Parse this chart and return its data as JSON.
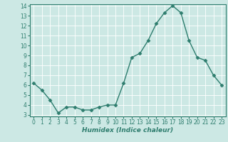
{
  "x": [
    0,
    1,
    2,
    3,
    4,
    5,
    6,
    7,
    8,
    9,
    10,
    11,
    12,
    13,
    14,
    15,
    16,
    17,
    18,
    19,
    20,
    21,
    22,
    23
  ],
  "y": [
    6.2,
    5.5,
    4.5,
    3.2,
    3.8,
    3.8,
    3.5,
    3.5,
    3.8,
    4.0,
    4.0,
    6.2,
    8.8,
    9.2,
    10.5,
    12.2,
    13.3,
    14.0,
    13.3,
    10.5,
    8.8,
    8.5,
    7.0,
    6.0
  ],
  "xlabel": "Humidex (Indice chaleur)",
  "ylim_min": 3,
  "ylim_max": 14,
  "xlim_min": -0.5,
  "xlim_max": 23.5,
  "yticks": [
    3,
    4,
    5,
    6,
    7,
    8,
    9,
    10,
    11,
    12,
    13,
    14
  ],
  "xticks": [
    0,
    1,
    2,
    3,
    4,
    5,
    6,
    7,
    8,
    9,
    10,
    11,
    12,
    13,
    14,
    15,
    16,
    17,
    18,
    19,
    20,
    21,
    22,
    23
  ],
  "line_color": "#2e7d6e",
  "marker": "D",
  "marker_size": 2.5,
  "bg_color": "#cce8e4",
  "grid_color": "#ffffff",
  "fig_bg": "#cce8e4",
  "tick_fontsize": 5.5,
  "xlabel_fontsize": 6.5
}
